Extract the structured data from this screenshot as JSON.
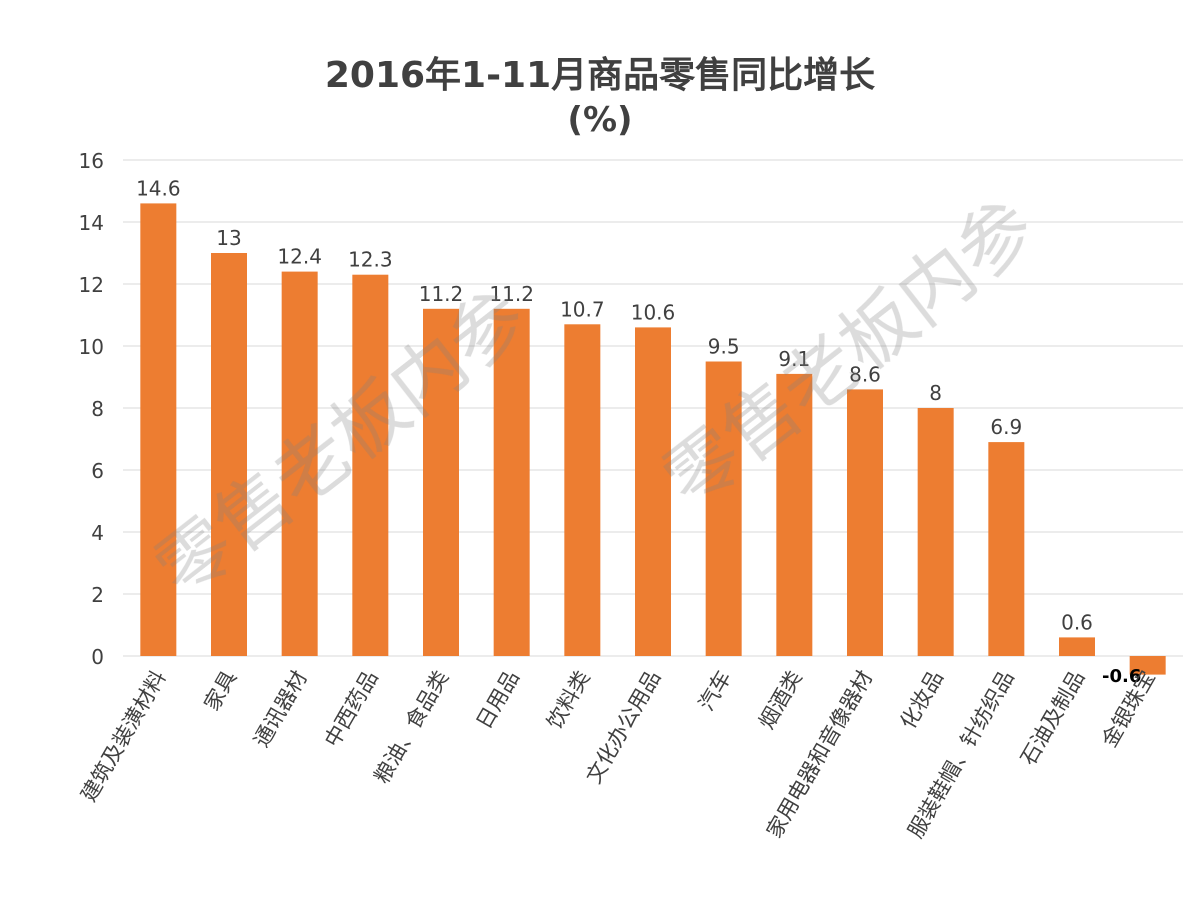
{
  "chart_data": {
    "type": "bar",
    "title": "2016年1-11月商品零售同比增长",
    "subtitle": "(%)",
    "categories": [
      "建筑及装潢材料",
      "家具",
      "通讯器材",
      "中西药品",
      "粮油、食品类",
      "日用品",
      "饮料类",
      "文化办公用品",
      "汽车",
      "烟酒类",
      "家用电器和音像器材",
      "化妆品",
      "服装鞋帽、针纺织品",
      "石油及制品",
      "金银珠宝"
    ],
    "values": [
      14.6,
      13,
      12.4,
      12.3,
      11.2,
      11.2,
      10.7,
      10.6,
      9.5,
      9.1,
      8.6,
      8,
      6.9,
      0.6,
      -0.6
    ],
    "data_labels": [
      "14.6",
      "13",
      "12.4",
      "12.3",
      "11.2",
      "11.2",
      "10.7",
      "10.6",
      "9.5",
      "9.1",
      "8.6",
      "8",
      "6.9",
      "0.6",
      "-0.6"
    ],
    "ylim": [
      0,
      16
    ],
    "yticks": [
      0,
      2,
      4,
      6,
      8,
      10,
      12,
      14,
      16
    ],
    "xlabel": "",
    "ylabel": "",
    "grid": true,
    "legend": "none",
    "colors": {
      "bar": "#ED7D31",
      "grid": "#D9D9D9",
      "text": "#404040"
    }
  },
  "watermark": "零售老板内参"
}
